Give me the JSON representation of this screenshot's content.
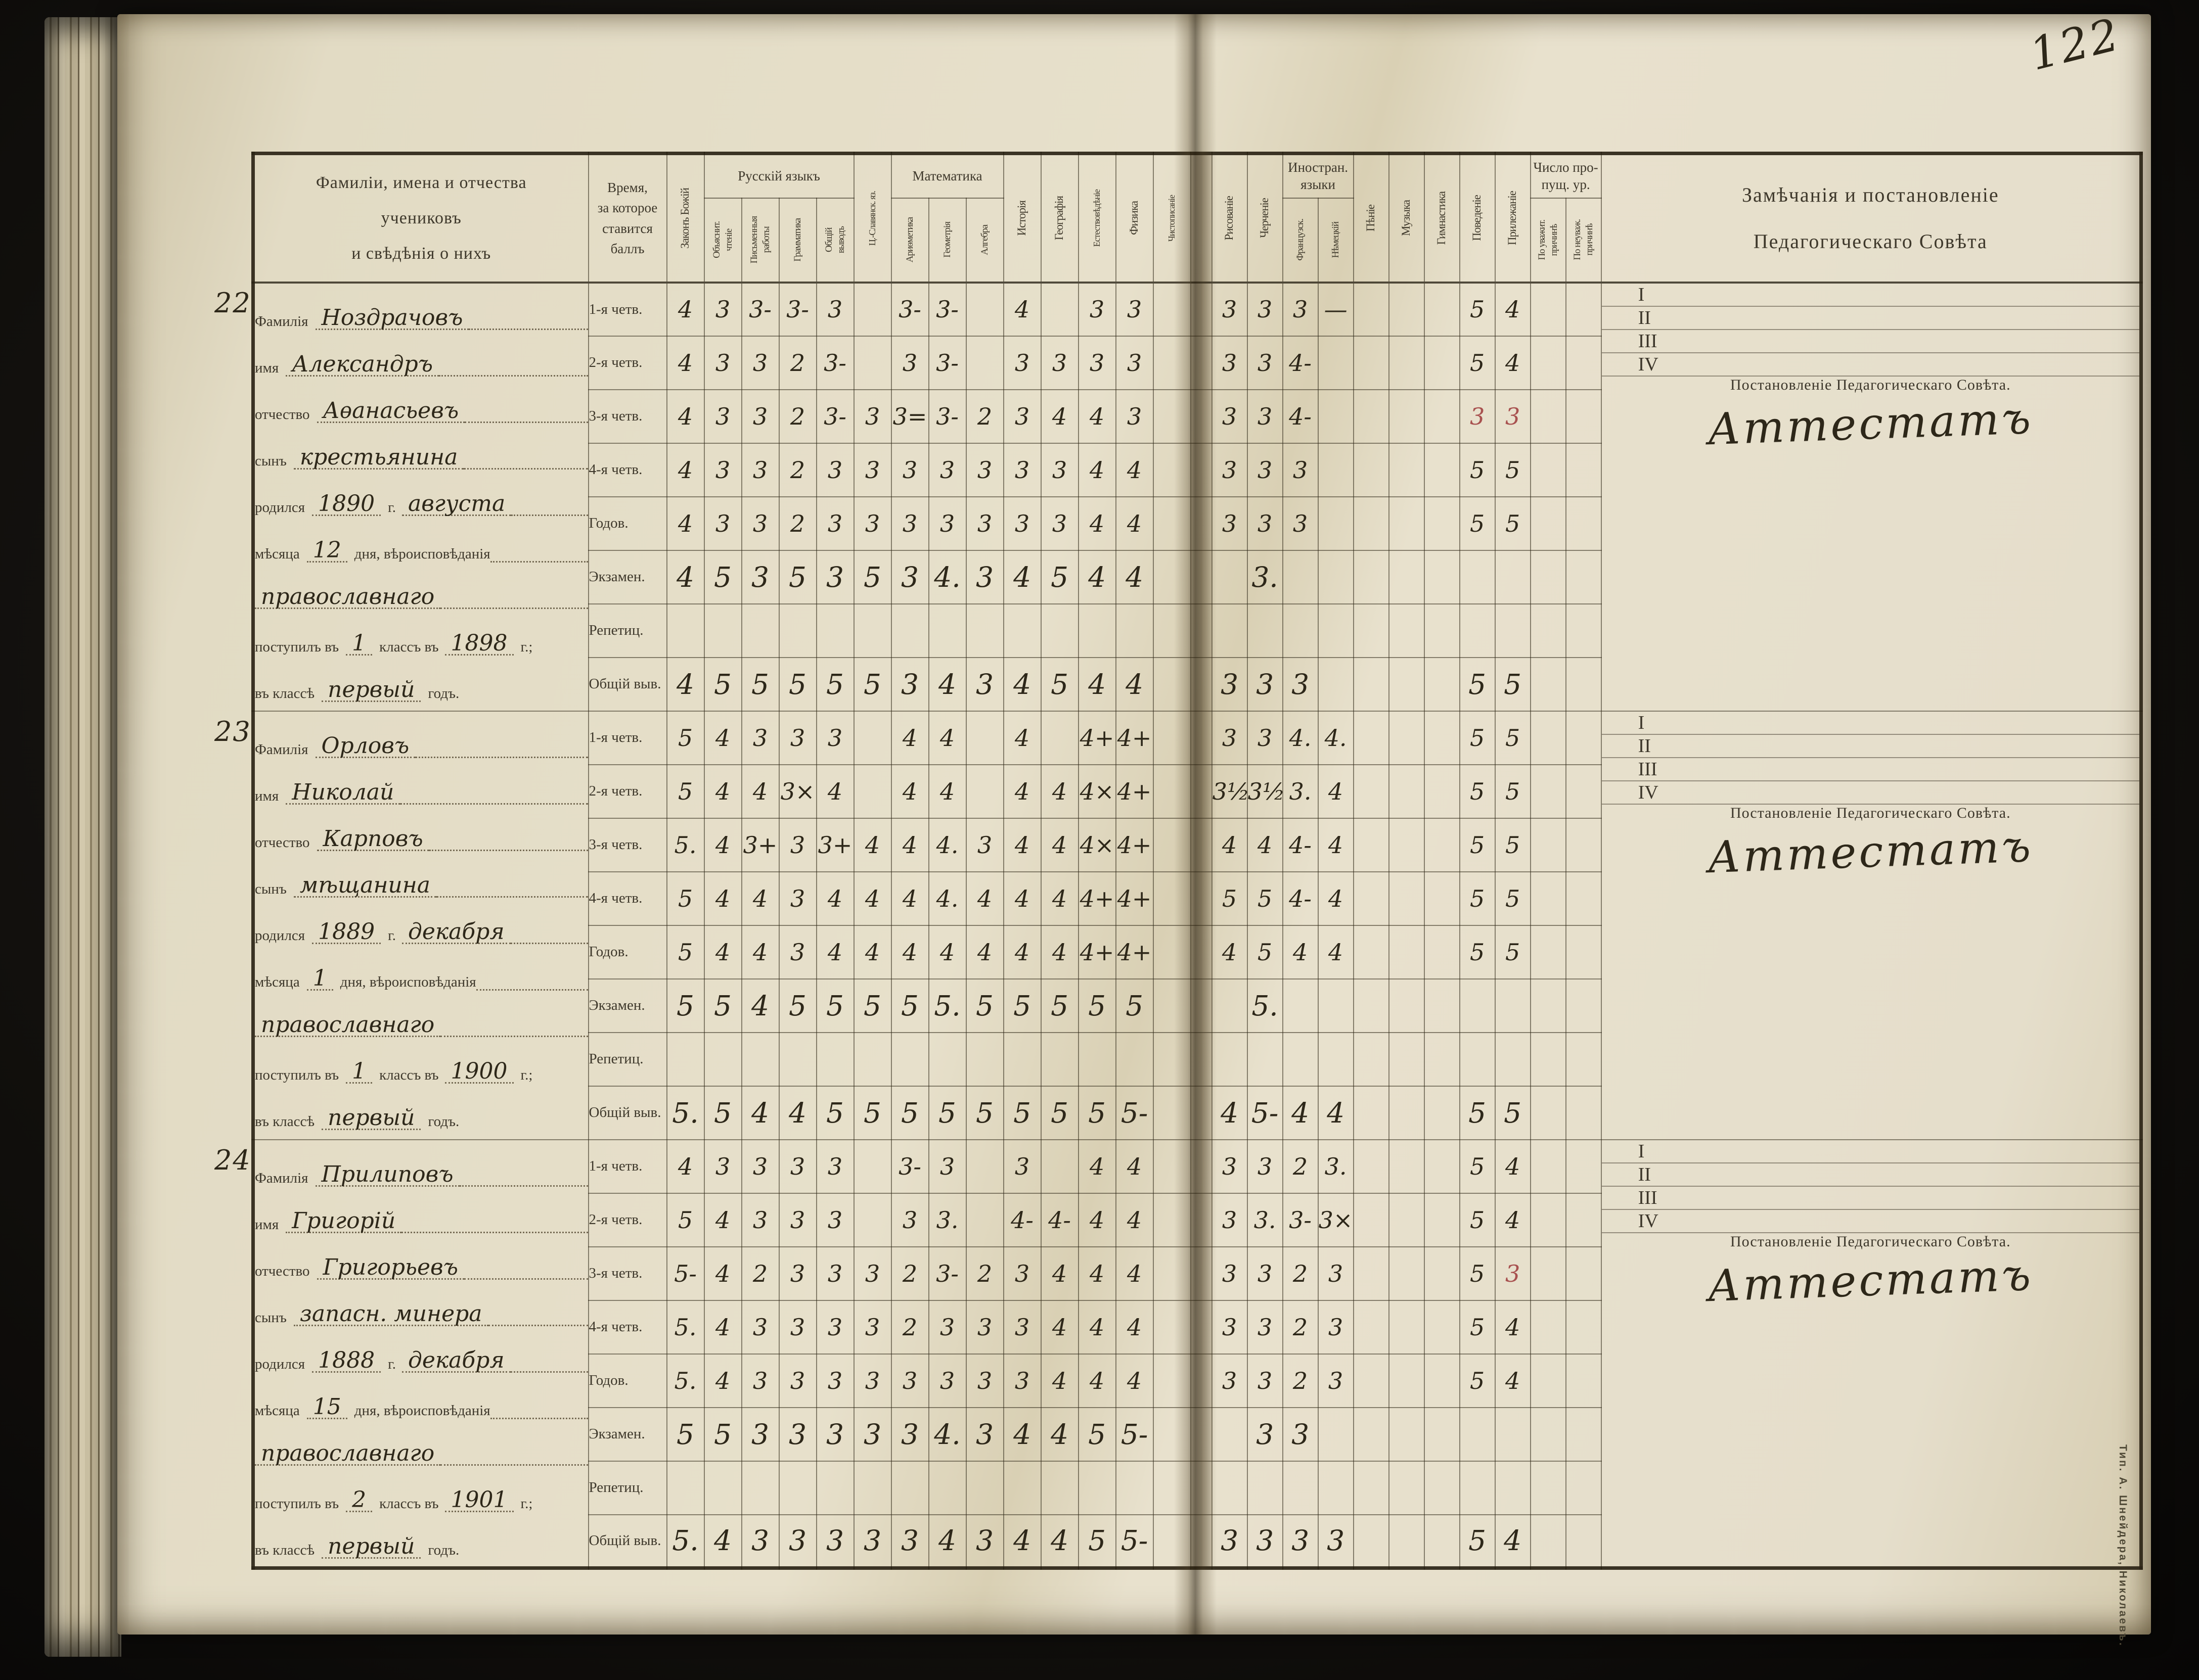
{
  "page": {
    "number": "122",
    "imprint": "Тип. А. Шнейдера, Николаевъ."
  },
  "header": {
    "students": "Фамиліи, имена и отчества\nучениковъ\nи свѣдѣнія о нихъ",
    "period": "Время,\nза которое\nставится\nбаллъ",
    "remarks": "Замѣчанія и постановленіе\nПедагогическаго Совѣта",
    "groups": {
      "russian": "Русскій языкъ",
      "math": "Математика",
      "foreign": "Иностран.\nязыки",
      "missed": "Число про-\nпущ. ур."
    }
  },
  "columns": [
    {
      "label": "Законъ Божій"
    },
    {
      "label": "Объяснит.\nчтеніе",
      "group": "russian"
    },
    {
      "label": "Письменныя\nработы",
      "group": "russian"
    },
    {
      "label": "Грамматика",
      "group": "russian"
    },
    {
      "label": "Общій\nвыводъ",
      "group": "russian"
    },
    {
      "label": "Ц.-Славянск. яз."
    },
    {
      "label": "Ариѳметика",
      "group": "math"
    },
    {
      "label": "Геометрія",
      "group": "math"
    },
    {
      "label": "Алгебра",
      "group": "math"
    },
    {
      "label": "Исторія"
    },
    {
      "label": "Географія"
    },
    {
      "label": "Естествовѣдѣніе"
    },
    {
      "label": "Физика"
    },
    {
      "label": "Чистописаніе"
    },
    {
      "label": "Рисованіе"
    },
    {
      "label": "Черченіе"
    },
    {
      "label": "Французск.",
      "group": "foreign"
    },
    {
      "label": "Нѣмецкій",
      "group": "foreign"
    },
    {
      "label": "Пѣніе"
    },
    {
      "label": "Музыка"
    },
    {
      "label": "Гимнастика"
    },
    {
      "label": "Поведеніе"
    },
    {
      "label": "Прилежаніе"
    },
    {
      "label": "По уважит.\nпричинѣ",
      "group": "missed"
    },
    {
      "label": "По неуваж.\nпричинѣ",
      "group": "missed"
    }
  ],
  "periods": [
    "1-я четв.",
    "2-я четв.",
    "3-я четв.",
    "4-я четв.",
    "Годов.",
    "Экзамен.",
    "Репетиц.",
    "Общій выв."
  ],
  "quarter_marks": [
    "I",
    "II",
    "III",
    "IV"
  ],
  "resolution_title": "Постановленіе Педагогическаго Совѣта.",
  "info_labels": {
    "surname": "Фамилія",
    "name": "имя",
    "patronymic": "отчество",
    "son": "сынъ",
    "born": "родился",
    "year_abbr": "г.",
    "month": "мѣсяца",
    "day_faith": "дня, вѣроисповѣданія",
    "entered1": "поступилъ въ",
    "entered2": "классъ въ",
    "entered3": "г.;",
    "inclass": "въ классѣ",
    "year_word": "годъ."
  },
  "students": [
    {
      "number": "22",
      "info": {
        "surname": "Ноздрачовъ",
        "name": "Александръ",
        "patronymic": "Аѳанасьевъ",
        "son_of": "крестьянина",
        "born_year": "1890",
        "born_month": "августа",
        "born_day": "12",
        "faith": "православнаго",
        "entered_class": "1",
        "entered_year": "1898",
        "years_in_class": "первый"
      },
      "resolution": "Аттестатъ",
      "reds": [
        [
          2,
          21
        ],
        [
          2,
          22
        ]
      ],
      "grades": [
        [
          "4",
          "3",
          "3-",
          "3-",
          "3",
          "",
          "3-",
          "3-",
          "",
          "4",
          "",
          "3",
          "3",
          "",
          "3",
          "3",
          "3",
          "—",
          "",
          "",
          "",
          "5",
          "4",
          "",
          ""
        ],
        [
          "4",
          "3",
          "3",
          "2",
          "3-",
          "",
          "3",
          "3-",
          "",
          "3",
          "3",
          "3",
          "3",
          "",
          "3",
          "3",
          "4-",
          "",
          "",
          "",
          "",
          "5",
          "4",
          "",
          ""
        ],
        [
          "4",
          "3",
          "3",
          "2",
          "3-",
          "3",
          "3=",
          "3-",
          "2",
          "3",
          "4",
          "4",
          "3",
          "",
          "3",
          "3",
          "4-",
          "",
          "",
          "",
          "",
          "3",
          "3",
          "",
          ""
        ],
        [
          "4",
          "3",
          "3",
          "2",
          "3",
          "3",
          "3",
          "3",
          "3",
          "3",
          "3",
          "4",
          "4",
          "",
          "3",
          "3",
          "3",
          "",
          "",
          "",
          "",
          "5",
          "5",
          "",
          ""
        ],
        [
          "4",
          "3",
          "3",
          "2",
          "3",
          "3",
          "3",
          "3",
          "3",
          "3",
          "3",
          "4",
          "4",
          "",
          "3",
          "3",
          "3",
          "",
          "",
          "",
          "",
          "5",
          "5",
          "",
          ""
        ],
        [
          "4",
          "5",
          "3",
          "5",
          "3",
          "5",
          "3",
          "4.",
          "3",
          "4",
          "5",
          "4",
          "4",
          "",
          "",
          "3.",
          "",
          "",
          "",
          "",
          "",
          "",
          "",
          "",
          ""
        ],
        [
          "",
          "",
          "",
          "",
          "",
          "",
          "",
          "",
          "",
          "",
          "",
          "",
          "",
          "",
          "",
          "",
          "",
          "",
          "",
          "",
          "",
          "",
          "",
          "",
          ""
        ],
        [
          "4",
          "5",
          "5",
          "5",
          "5",
          "5",
          "3",
          "4",
          "3",
          "4",
          "5",
          "4",
          "4",
          "",
          "3",
          "3",
          "3",
          "",
          "",
          "",
          "",
          "5",
          "5",
          "",
          ""
        ]
      ]
    },
    {
      "number": "23",
      "info": {
        "surname": "Орловъ",
        "name": "Николай",
        "patronymic": "Карповъ",
        "son_of": "мѣщанина",
        "born_year": "1889",
        "born_month": "декабря",
        "born_day": "1",
        "faith": "православнаго",
        "entered_class": "1",
        "entered_year": "1900",
        "years_in_class": "первый"
      },
      "resolution": "Аттестатъ",
      "reds": [],
      "grades": [
        [
          "5",
          "4",
          "3",
          "3",
          "3",
          "",
          "4",
          "4",
          "",
          "4",
          "",
          "4+",
          "4+",
          "",
          "3",
          "3",
          "4.",
          "4.",
          "",
          "",
          "",
          "5",
          "5",
          "",
          ""
        ],
        [
          "5",
          "4",
          "4",
          "3×",
          "4",
          "",
          "4",
          "4",
          "",
          "4",
          "4",
          "4×",
          "4+",
          "",
          "3½",
          "3½",
          "3.",
          "4",
          "",
          "",
          "",
          "5",
          "5",
          "",
          ""
        ],
        [
          "5.",
          "4",
          "3+",
          "3",
          "3+",
          "4",
          "4",
          "4.",
          "3",
          "4",
          "4",
          "4×",
          "4+",
          "",
          "4",
          "4",
          "4-",
          "4",
          "",
          "",
          "",
          "5",
          "5",
          "",
          ""
        ],
        [
          "5",
          "4",
          "4",
          "3",
          "4",
          "4",
          "4",
          "4.",
          "4",
          "4",
          "4",
          "4+",
          "4+",
          "",
          "5",
          "5",
          "4-",
          "4",
          "",
          "",
          "",
          "5",
          "5",
          "",
          ""
        ],
        [
          "5",
          "4",
          "4",
          "3",
          "4",
          "4",
          "4",
          "4",
          "4",
          "4",
          "4",
          "4+",
          "4+",
          "",
          "4",
          "5",
          "4",
          "4",
          "",
          "",
          "",
          "5",
          "5",
          "",
          ""
        ],
        [
          "5",
          "5",
          "4",
          "5",
          "5",
          "5",
          "5",
          "5.",
          "5",
          "5",
          "5",
          "5",
          "5",
          "",
          "",
          "5.",
          "",
          "",
          "",
          "",
          "",
          "",
          "",
          "",
          ""
        ],
        [
          "",
          "",
          "",
          "",
          "",
          "",
          "",
          "",
          "",
          "",
          "",
          "",
          "",
          "",
          "",
          "",
          "",
          "",
          "",
          "",
          "",
          "",
          "",
          "",
          ""
        ],
        [
          "5.",
          "5",
          "4",
          "4",
          "5",
          "5",
          "5",
          "5",
          "5",
          "5",
          "5",
          "5",
          "5-",
          "",
          "4",
          "5-",
          "4",
          "4",
          "",
          "",
          "",
          "5",
          "5",
          "",
          ""
        ]
      ]
    },
    {
      "number": "24",
      "info": {
        "surname": "Прилиповъ",
        "name": "Григорій",
        "patronymic": "Григорьевъ",
        "son_of": "запасн. минера",
        "born_year": "1888",
        "born_month": "декабря",
        "born_day": "15",
        "faith": "православнаго",
        "entered_class": "2",
        "entered_year": "1901",
        "years_in_class": "первый"
      },
      "resolution": "Аттестатъ",
      "reds": [
        [
          2,
          22
        ]
      ],
      "grades": [
        [
          "4",
          "3",
          "3",
          "3",
          "3",
          "",
          "3-",
          "3",
          "",
          "3",
          "",
          "4",
          "4",
          "",
          "3",
          "3",
          "2",
          "3.",
          "",
          "",
          "",
          "5",
          "4",
          "",
          ""
        ],
        [
          "5",
          "4",
          "3",
          "3",
          "3",
          "",
          "3",
          "3.",
          "",
          "4-",
          "4-",
          "4",
          "4",
          "",
          "3",
          "3.",
          "3-",
          "3×",
          "",
          "",
          "",
          "5",
          "4",
          "",
          ""
        ],
        [
          "5-",
          "4",
          "2",
          "3",
          "3",
          "3",
          "2",
          "3-",
          "2",
          "3",
          "4",
          "4",
          "4",
          "",
          "3",
          "3",
          "2",
          "3",
          "",
          "",
          "",
          "5",
          "3",
          "",
          ""
        ],
        [
          "5.",
          "4",
          "3",
          "3",
          "3",
          "3",
          "2",
          "3",
          "3",
          "3",
          "4",
          "4",
          "4",
          "",
          "3",
          "3",
          "2",
          "3",
          "",
          "",
          "",
          "5",
          "4",
          "",
          ""
        ],
        [
          "5.",
          "4",
          "3",
          "3",
          "3",
          "3",
          "3",
          "3",
          "3",
          "3",
          "4",
          "4",
          "4",
          "",
          "3",
          "3",
          "2",
          "3",
          "",
          "",
          "",
          "5",
          "4",
          "",
          ""
        ],
        [
          "5",
          "5",
          "3",
          "3",
          "3",
          "3",
          "3",
          "4.",
          "3",
          "4",
          "4",
          "5",
          "5-",
          "",
          "",
          "3",
          "3",
          "",
          "",
          "",
          "",
          "",
          "",
          "",
          ""
        ],
        [
          "",
          "",
          "",
          "",
          "",
          "",
          "",
          "",
          "",
          "",
          "",
          "",
          "",
          "",
          "",
          "",
          "",
          "",
          "",
          "",
          "",
          "",
          "",
          "",
          ""
        ],
        [
          "5.",
          "4",
          "3",
          "3",
          "3",
          "3",
          "3",
          "4",
          "3",
          "4",
          "4",
          "5",
          "5-",
          "",
          "3",
          "3",
          "3",
          "3",
          "",
          "",
          "",
          "5",
          "4",
          "",
          ""
        ]
      ]
    }
  ]
}
